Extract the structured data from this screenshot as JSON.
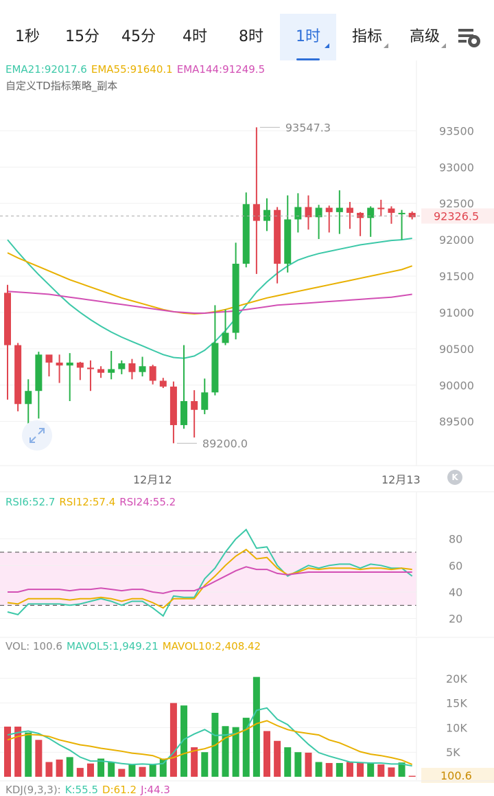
{
  "tabs": [
    {
      "label": "1秒",
      "active": false,
      "dropdown": false
    },
    {
      "label": "15分",
      "active": false,
      "dropdown": false
    },
    {
      "label": "45分",
      "active": false,
      "dropdown": false
    },
    {
      "label": "4时",
      "active": false,
      "dropdown": false
    },
    {
      "label": "8时",
      "active": false,
      "dropdown": false
    },
    {
      "label": "1时",
      "active": true,
      "dropdown": true
    },
    {
      "label": "指标",
      "active": false,
      "dropdown": true
    },
    {
      "label": "高级",
      "active": false,
      "dropdown": true
    }
  ],
  "settings_icon": "chart-settings-icon",
  "ema_legend": [
    {
      "text": "EMA21:92017.6",
      "color": "#3cc8a8"
    },
    {
      "text": "EMA55:91640.1",
      "color": "#e8b000"
    },
    {
      "text": "EMA144:91249.5",
      "color": "#d24fb4"
    }
  ],
  "strategy_label": "自定义TD指标策略_副本",
  "rsi_legend": [
    {
      "text": "RSI6:52.7",
      "color": "#3cc8a8"
    },
    {
      "text": "RSI12:57.4",
      "color": "#e8b000"
    },
    {
      "text": "RSI24:55.2",
      "color": "#d24fb4"
    }
  ],
  "vol_legend": [
    {
      "text": "VOL: 100.6",
      "color": "#888888"
    },
    {
      "text": "MAVOL5:1,949.21",
      "color": "#3cc8a8"
    },
    {
      "text": "MAVOL10:2,408.42",
      "color": "#e8b000"
    }
  ],
  "kdj_legend": [
    {
      "text": "KDJ(9,3,3):",
      "color": "#888888"
    },
    {
      "text": "K:55.5",
      "color": "#3cc8a8"
    },
    {
      "text": "D:61.2",
      "color": "#e8b000"
    },
    {
      "text": "J:44.3",
      "color": "#d24fb4"
    }
  ],
  "colors": {
    "up": "#28b24a",
    "down": "#e0454f",
    "ema21": "#3cc8a8",
    "ema55": "#e8b000",
    "ema144": "#d24fb4",
    "accent": "#2e6fd8"
  },
  "chart_data": [
    {
      "type": "candlestick",
      "title": "",
      "ylim": [
        89100,
        93900
      ],
      "yticks": [
        "93500",
        "93000",
        "92500",
        "92000",
        "91500",
        "91000",
        "90500",
        "90000",
        "89500"
      ],
      "x_labels": [
        "12月12",
        "12月13"
      ],
      "current_price": "92326.5",
      "high_annotation": "93547.3",
      "low_annotation": "89200.0",
      "candles": [
        [
          91270,
          90550,
          89800,
          91380
        ],
        [
          90550,
          89740,
          89640,
          90580
        ],
        [
          89740,
          89920,
          89280,
          90080
        ],
        [
          89920,
          90420,
          89540,
          90460
        ],
        [
          90420,
          90310,
          90120,
          90400
        ],
        [
          90310,
          90270,
          90030,
          90420
        ],
        [
          90270,
          90310,
          89780,
          90440
        ],
        [
          90310,
          90240,
          90070,
          90320
        ],
        [
          90240,
          90220,
          89920,
          90340
        ],
        [
          90220,
          90170,
          90100,
          90260
        ],
        [
          90170,
          90220,
          90080,
          90470
        ],
        [
          90220,
          90300,
          90150,
          90340
        ],
        [
          90300,
          90180,
          90080,
          90360
        ],
        [
          90180,
          90260,
          90120,
          90390
        ],
        [
          90260,
          90060,
          90010,
          90280
        ],
        [
          90060,
          89980,
          89960,
          90100
        ],
        [
          89980,
          89450,
          89200,
          90050
        ],
        [
          89450,
          89780,
          89400,
          90550
        ],
        [
          89780,
          89660,
          89280,
          89930
        ],
        [
          89660,
          89900,
          89600,
          90090
        ],
        [
          89900,
          90580,
          89860,
          91100
        ],
        [
          90580,
          90720,
          90550,
          91040
        ],
        [
          90720,
          91670,
          90630,
          91960
        ],
        [
          91670,
          92490,
          91620,
          92650
        ],
        [
          92490,
          92260,
          91530,
          93170
        ],
        [
          92260,
          92410,
          92120,
          92570
        ],
        [
          92410,
          91670,
          91400,
          92450
        ],
        [
          91670,
          92280,
          91550,
          92610
        ],
        [
          92280,
          92450,
          92100,
          92640
        ],
        [
          92450,
          92310,
          92140,
          92610
        ],
        [
          92310,
          92440,
          92010,
          92480
        ],
        [
          92440,
          92380,
          92100,
          92470
        ],
        [
          92380,
          92440,
          92080,
          92680
        ],
        [
          92440,
          92370,
          92150,
          92520
        ],
        [
          92370,
          92300,
          92050,
          92380
        ],
        [
          92300,
          92440,
          92040,
          92460
        ],
        [
          92440,
          92430,
          92320,
          92550
        ],
        [
          92430,
          92370,
          92220,
          92460
        ],
        [
          92370,
          92370,
          92000,
          92410
        ],
        [
          92370,
          92310,
          92280,
          92390
        ]
      ],
      "high_index": 24,
      "low_index": 16,
      "peak_high": 93547.3,
      "series": [
        {
          "name": "EMA21",
          "values": [
            92000,
            91830,
            91670,
            91520,
            91380,
            91240,
            91110,
            91000,
            90900,
            90810,
            90730,
            90660,
            90600,
            90540,
            90480,
            90420,
            90380,
            90370,
            90400,
            90480,
            90600,
            90750,
            90920,
            91100,
            91280,
            91420,
            91540,
            91640,
            91720,
            91770,
            91810,
            91840,
            91870,
            91900,
            91930,
            91950,
            91970,
            91990,
            92000,
            92020
          ]
        },
        {
          "name": "EMA55",
          "values": [
            91820,
            91750,
            91690,
            91630,
            91570,
            91510,
            91450,
            91400,
            91350,
            91300,
            91250,
            91200,
            91160,
            91120,
            91080,
            91040,
            91010,
            90990,
            90980,
            90990,
            91010,
            91040,
            91080,
            91120,
            91160,
            91200,
            91230,
            91260,
            91290,
            91320,
            91350,
            91380,
            91410,
            91440,
            91470,
            91500,
            91530,
            91560,
            91590,
            91640
          ]
        },
        {
          "name": "EMA144",
          "values": [
            91290,
            91280,
            91270,
            91260,
            91250,
            91230,
            91210,
            91190,
            91170,
            91150,
            91130,
            91110,
            91090,
            91070,
            91050,
            91030,
            91010,
            91000,
            90990,
            90990,
            91000,
            91010,
            91020,
            91040,
            91060,
            91080,
            91100,
            91110,
            91120,
            91130,
            91140,
            91150,
            91160,
            91170,
            91180,
            91190,
            91200,
            91210,
            91230,
            91250
          ]
        }
      ]
    },
    {
      "type": "line",
      "title": "",
      "ylim": [
        10,
        100
      ],
      "yticks": [
        "80",
        "60",
        "40",
        "20"
      ],
      "bands": [
        30,
        70
      ],
      "series": [
        {
          "name": "RSI6",
          "values": [
            25,
            23,
            31,
            31,
            31,
            31,
            30,
            31,
            33,
            35,
            33,
            30,
            33,
            33,
            28,
            22,
            37,
            36,
            36,
            50,
            58,
            70,
            80,
            87,
            73,
            74,
            60,
            52,
            56,
            60,
            58,
            60,
            61,
            61,
            58,
            61,
            60,
            58,
            58,
            52
          ]
        },
        {
          "name": "RSI12",
          "values": [
            32,
            31,
            35,
            35,
            35,
            35,
            34,
            35,
            35,
            36,
            35,
            33,
            35,
            35,
            32,
            28,
            35,
            35,
            35,
            45,
            52,
            60,
            67,
            72,
            65,
            66,
            58,
            53,
            55,
            58,
            57,
            58,
            58,
            58,
            57,
            58,
            58,
            57,
            58,
            57
          ]
        },
        {
          "name": "RSI24",
          "values": [
            40,
            40,
            42,
            42,
            42,
            42,
            41,
            42,
            42,
            43,
            42,
            41,
            42,
            42,
            40,
            39,
            41,
            41,
            41,
            44,
            48,
            52,
            56,
            59,
            57,
            57,
            54,
            53,
            54,
            55,
            55,
            55,
            55,
            55,
            55,
            55,
            55,
            55,
            55,
            55
          ]
        }
      ]
    },
    {
      "type": "bar",
      "title": "",
      "ylim": [
        0,
        25000
      ],
      "yticks": [
        "20K",
        "15K",
        "10K",
        "5K"
      ],
      "current_value": "100.6",
      "values": [
        10200,
        10200,
        9000,
        7500,
        3000,
        3500,
        4000,
        1800,
        2700,
        3700,
        3000,
        1600,
        2500,
        2000,
        2500,
        3700,
        15000,
        14500,
        6000,
        5000,
        13000,
        10300,
        10100,
        12000,
        20300,
        9300,
        7300,
        6000,
        5000,
        4900,
        3000,
        2800,
        2800,
        3000,
        2900,
        2800,
        2500,
        1900,
        2900,
        200
      ],
      "up": [
        false,
        false,
        true,
        false,
        false,
        false,
        true,
        false,
        false,
        true,
        true,
        false,
        true,
        false,
        true,
        true,
        false,
        true,
        false,
        true,
        true,
        true,
        true,
        true,
        true,
        false,
        false,
        true,
        true,
        false,
        true,
        false,
        true,
        false,
        false,
        true,
        false,
        false,
        true,
        false
      ],
      "series": [
        {
          "name": "MAVOL5",
          "values": [
            8500,
            9000,
            9300,
            8800,
            7800,
            6500,
            5400,
            4000,
            3200,
            3200,
            3000,
            2700,
            2500,
            2600,
            2500,
            2700,
            4900,
            7600,
            8700,
            9600,
            8400,
            8500,
            8800,
            9600,
            13500,
            14000,
            11700,
            10600,
            8600,
            6600,
            4900,
            4200,
            3600,
            3000,
            2900,
            2800,
            2800,
            2600,
            2600,
            2200
          ]
        },
        {
          "name": "MAVOL10",
          "values": [
            7500,
            8200,
            8600,
            8500,
            8200,
            7500,
            7000,
            6500,
            6200,
            5800,
            5500,
            5200,
            4800,
            4600,
            4300,
            3500,
            3900,
            4700,
            5300,
            5700,
            6400,
            7900,
            8700,
            9600,
            10800,
            11400,
            10400,
            9600,
            9100,
            8800,
            8500,
            7500,
            6900,
            6000,
            5100,
            4600,
            4300,
            3900,
            3400,
            2500
          ]
        }
      ]
    }
  ]
}
